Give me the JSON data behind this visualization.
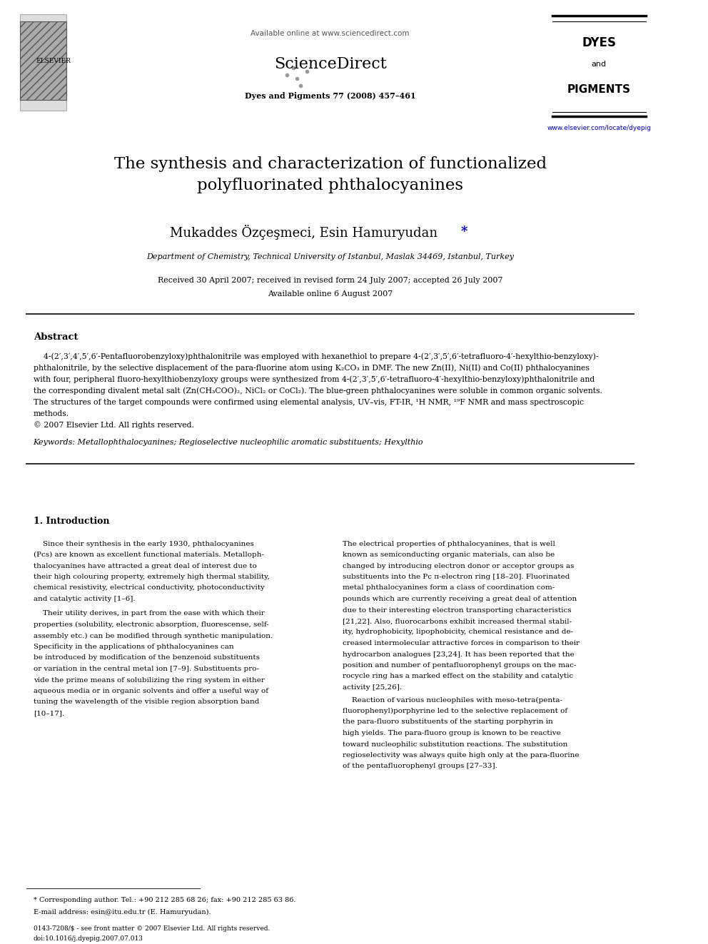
{
  "bg_color": "#ffffff",
  "page_width": 9.92,
  "page_height": 13.23,
  "header": {
    "available_online": "Available online at www.sciencedirect.com",
    "journal_info": "Dyes and Pigments 77 (2008) 457–461",
    "sciencedirect_text": "ScienceDirect",
    "journal_name_line1": "DYES",
    "journal_name_line2": "and",
    "journal_name_line3": "PIGMENTS",
    "elsevier_text": "ELSEVIER",
    "website": "www.elsevier.com/locate/dyepig"
  },
  "title": "The synthesis and characterization of functionalized\npolyfluorinated phthalocyanines",
  "authors": "Mukaddes Özçeşmeci, Esin Hamuryudan*",
  "affiliation": "Department of Chemistry, Technical University of Istanbul, Maslak 34469, Istanbul, Turkey",
  "received_line1": "Received 30 April 2007; received in revised form 24 July 2007; accepted 26 July 2007",
  "received_line2": "Available online 6 August 2007",
  "abstract_title": "Abstract",
  "abstract_text": "4-(2′,3′,4′,5′,6′-Pentafluorobenzyloxy)phthalonitrile was employed with hexanethiol to prepare 4-(2′,3′,5′,6′-tetrafluoro-4′-hexylthio-benzyloxy)-phthalonitrile, by the selective displacement of the para-fluorine atom using K₂CO₃ in DMF. The new Zn(II), Ni(II) and Co(II) phthalocyanines with four, peripheral fluoro-hexylthiobenzyloxy groups were synthesized from 4-(2′,3′,5′,6′-tetrafluoro-4′-hexylthio-benzyloxy)phthalonitrile and the corresponding divalent metal salt (Zn(CH₃COO)₂, NiCl₂ or CoCl₂). The blue-green phthalocyanines were soluble in common organic solvents. The structures of the target compounds were confirmed using elemental analysis, UV–vis, FT-IR, ¹H NMR, ¹⁹F NMR and mass spectroscopic methods.\n© 2007 Elsevier Ltd. All rights reserved.",
  "keywords": "Keywords: Metallophthalocyanines; Regioselective nucleophilic aromatic substituents; Hexylthio",
  "intro_title": "1. Introduction",
  "intro_col1_para1": "Since their synthesis in the early 1930, phthalocyanines (Pcs) are known as excellent functional materials. Metallophthalocyanines have attracted a great deal of interest due to their high colouring property, extremely high thermal stability, chemical resistivity, electrical conductivity, photoconductivity and catalytic activity [1–6].",
  "intro_col1_para2": "Their utility derives, in part from the ease with which their properties (solubility, electronic absorption, fluorescense, self-assembly etc.) can be modified through synthetic manipulation. Specificity in the applications of phthalocyanines can be introduced by modification of the benzenoid substituents or variation in the central metal ion [7–9]. Substituents provide the prime means of solubilizing the ring system in either aqueous media or in organic solvents and offer a useful way of tuning the wavelength of the visible region absorption band [10–17].",
  "intro_col2_para1": "The electrical properties of phthalocyanines, that is well known as semiconducting organic materials, can also be changed by introducing electron donor or acceptor groups as substituents into the Pc π-electron ring [18–20]. Fluorinated metal phthalocyanines form a class of coordination compounds which are currently receiving a great deal of attention due to their interesting electron transporting characteristics [21,22]. Also, fluorocarbons exhibit increased thermal stability, hydrophobicity, lipophobicity, chemical resistance and decreased intermolecular attractive forces in comparison to their hydrocarbon analogues [23,24]. It has been reported that the position and number of pentafluorophenyl groups on the macrocycle ring has a marked effect on the stability and catalytic activity [25,26].",
  "intro_col2_para2": "Reaction of various nucleophiles with meso-tetra(pentafluorophenyl)porphyrine led to the selective replacement of the para-fluoro substituents of the starting porphyrin in high yields. The para-fluoro group is known to be reactive toward nucleophilic substitution reactions. The substitution regioselectivity was always quite high only at the para-fluorine of the pentafluorophenyl groups [27–33].",
  "footnote_star": "* Corresponding author. Tel.: +90 212 285 68 26; fax: +90 212 285 63 86.",
  "footnote_email": "E-mail address: esin@itu.edu.tr (E. Hamuryudan).",
  "footer_issn": "0143-7208/$ - see front matter © 2007 Elsevier Ltd. All rights reserved.",
  "footer_doi": "doi:10.1016/j.dyepig.2007.07.013",
  "link_color": "#0000cc",
  "text_color": "#000000",
  "gray_color": "#555555"
}
